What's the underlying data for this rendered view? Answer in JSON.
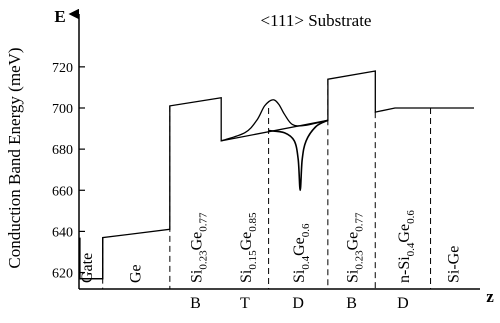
{
  "chart_data": {
    "type": "line",
    "title": "<111> Substrate",
    "ylabel": "Conduction Band Energy (meV)",
    "y_axis_letter": "E",
    "x_axis_letter": "z",
    "ylim": [
      612,
      735
    ],
    "yticks": [
      620,
      640,
      660,
      680,
      700,
      720
    ],
    "regions": [
      {
        "label_main": "Gate",
        "label_sub1": "",
        "label_mid": "",
        "label_sub2": "",
        "tag": "",
        "z": [
          0.0,
          0.6
        ]
      },
      {
        "label_main": "Ge",
        "label_sub1": "",
        "label_mid": "",
        "label_sub2": "",
        "tag": "",
        "z": [
          0.6,
          2.3
        ]
      },
      {
        "label_main": "Si",
        "label_sub1": "0.23",
        "label_mid": "Ge",
        "label_sub2": "0.77",
        "tag": "B",
        "z": [
          2.3,
          3.6
        ]
      },
      {
        "label_main": "Si",
        "label_sub1": "0.15",
        "label_mid": "Ge",
        "label_sub2": "0.85",
        "tag": "T",
        "z": [
          3.6,
          4.8
        ]
      },
      {
        "label_main": "Si",
        "label_sub1": "0.4",
        "label_mid": "Ge",
        "label_sub2": "0.6",
        "tag": "D",
        "z": [
          4.8,
          6.3
        ]
      },
      {
        "label_main": "Si",
        "label_sub1": "0.23",
        "label_mid": "Ge",
        "label_sub2": "0.77",
        "tag": "B",
        "z": [
          6.3,
          7.5
        ]
      },
      {
        "label_main": "n-Si",
        "label_sub1": "0.4",
        "label_mid": "Ge",
        "label_sub2": "0.6",
        "tag": "D",
        "z": [
          7.5,
          8.9
        ]
      },
      {
        "label_main": "Si-Ge",
        "label_sub1": "",
        "label_mid": "",
        "label_sub2": "",
        "tag": "",
        "z": [
          8.9,
          10.0
        ]
      }
    ],
    "band_profile": {
      "x": [
        0.0,
        0.6,
        0.6,
        2.3,
        2.3,
        3.6,
        3.6,
        6.3,
        6.3,
        7.5,
        7.5,
        8.0,
        10.0
      ],
      "y": [
        617,
        617,
        637,
        641,
        701,
        705,
        684,
        694,
        714,
        718,
        698,
        700,
        700
      ]
    },
    "gate_box": {
      "x": [
        0.0,
        0.6
      ],
      "y": [
        617,
        637
      ]
    },
    "wavefunction": {
      "x": [
        3.6,
        4.2,
        4.5,
        4.7,
        4.9,
        5.05,
        5.2,
        5.4,
        5.7,
        6.3
      ],
      "y": [
        684,
        688,
        694,
        701,
        704,
        702,
        697,
        692,
        691.5,
        694
      ]
    },
    "potential_dip": {
      "x": [
        4.8,
        5.2,
        5.45,
        5.55,
        5.6,
        5.65,
        5.75,
        6.0,
        6.3
      ],
      "y": [
        689,
        688,
        684,
        675,
        660,
        675,
        684,
        691,
        694
      ]
    }
  }
}
